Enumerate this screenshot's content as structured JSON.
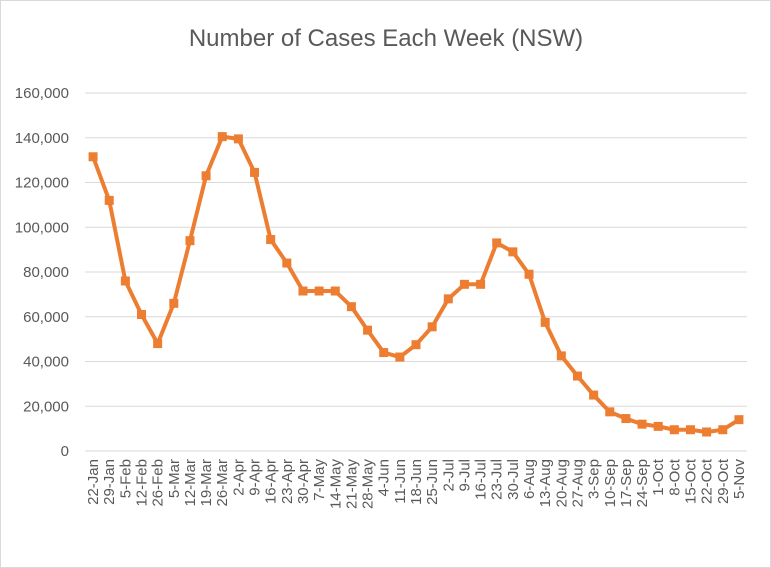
{
  "chart_data": {
    "type": "line",
    "title": "Number of Cases Each Week (NSW)",
    "xlabel": "",
    "ylabel": "",
    "ylim": [
      0,
      160000
    ],
    "yticks": [
      0,
      20000,
      40000,
      60000,
      80000,
      100000,
      120000,
      140000,
      160000
    ],
    "ytick_labels": [
      "0",
      "20,000",
      "40,000",
      "60,000",
      "80,000",
      "100,000",
      "120,000",
      "140,000",
      "160,000"
    ],
    "grid": true,
    "legend": "none",
    "color": "#ed7d31",
    "marker": "square",
    "categories": [
      "22-Jan",
      "29-Jan",
      "5-Feb",
      "12-Feb",
      "26-Feb",
      "5-Mar",
      "12-Mar",
      "19-Mar",
      "26-Mar",
      "2-Apr",
      "9-Apr",
      "16-Apr",
      "23-Apr",
      "30-Apr",
      "7-May",
      "14-May",
      "21-May",
      "28-May",
      "4-Jun",
      "11-Jun",
      "18-Jun",
      "25-Jun",
      "2-Jul",
      "9-Jul",
      "16-Jul",
      "23-Jul",
      "30-Jul",
      "6-Aug",
      "13-Aug",
      "20-Aug",
      "27-Aug",
      "3-Sep",
      "10-Sep",
      "17-Sep",
      "24-Sep",
      "1-Oct",
      "8-Oct",
      "15-Oct",
      "22-Oct",
      "29-Oct",
      "5-Nov"
    ],
    "series": [
      {
        "values": [
          131500,
          112000,
          76000,
          61000,
          48000,
          66000,
          94000,
          123000,
          140500,
          139500,
          124500,
          94500,
          84000,
          71500,
          71500,
          71500,
          64500,
          54000,
          44000,
          42000,
          47500,
          55500,
          68000,
          74500,
          74500,
          93000,
          89000,
          79000,
          57500,
          42500,
          33500,
          25000,
          17500,
          14500,
          12000,
          11000,
          9500,
          9500,
          8500,
          9500,
          14000
        ]
      }
    ]
  }
}
